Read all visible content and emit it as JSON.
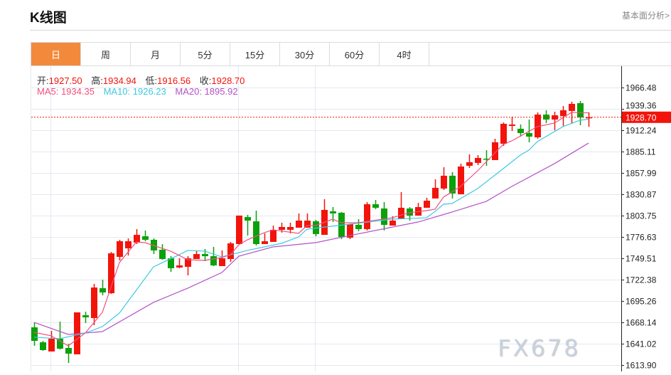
{
  "header": {
    "title": "K线图",
    "more_link": "基本面分析>"
  },
  "tabs": [
    {
      "label": "日",
      "active": true
    },
    {
      "label": "周"
    },
    {
      "label": "月"
    },
    {
      "label": "5分"
    },
    {
      "label": "15分"
    },
    {
      "label": "30分"
    },
    {
      "label": "60分"
    },
    {
      "label": "4时"
    }
  ],
  "info": {
    "open_label": "开:",
    "open": "1927.50",
    "high_label": "高:",
    "high": "1934.94",
    "low_label": "低:",
    "low": "1916.56",
    "close_label": "收:",
    "close": "1928.70",
    "ma5": "MA5: 1934.35",
    "ma10": "MA10: 1926.23",
    "ma20": "MA20: 1895.92"
  },
  "watermark": "FX678",
  "colors": {
    "up": "#f2140b",
    "down": "#0aa10a",
    "ma5": "#f0507e",
    "ma10": "#3ec8e0",
    "ma20": "#b452c6",
    "tab_active": "#f28a3c"
  },
  "chart_data": {
    "type": "candlestick",
    "ylim": [
      1613.9,
      1966.48
    ],
    "y_ticks": [
      "1966.48",
      "1939.36",
      "1912.24",
      "1885.11",
      "1857.99",
      "1830.87",
      "1803.75",
      "1776.63",
      "1749.51",
      "1722.38",
      "1695.26",
      "1668.14",
      "1641.02",
      "1613.90"
    ],
    "last_price": "1928.70",
    "candles_ohlc": [
      [
        1661.8,
        1668.1,
        1638.3,
        1644.6
      ],
      [
        1642.8,
        1644.6,
        1632.0,
        1632.9
      ],
      [
        1631.1,
        1657.3,
        1631.1,
        1647.3
      ],
      [
        1647.3,
        1669.0,
        1633.8,
        1634.7
      ],
      [
        1635.6,
        1641.0,
        1616.6,
        1628.4
      ],
      [
        1627.5,
        1680.8,
        1627.5,
        1680.8
      ],
      [
        1677.2,
        1681.7,
        1667.2,
        1674.5
      ],
      [
        1673.6,
        1717.0,
        1664.5,
        1712.4
      ],
      [
        1711.5,
        1722.4,
        1702.5,
        1706.1
      ],
      [
        1705.2,
        1757.6,
        1704.3,
        1755.8
      ],
      [
        1751.3,
        1773.0,
        1746.8,
        1771.2
      ],
      [
        1762.2,
        1774.8,
        1753.1,
        1771.2
      ],
      [
        1769.4,
        1786.6,
        1767.6,
        1779.3
      ],
      [
        1777.5,
        1784.8,
        1771.2,
        1773.0
      ],
      [
        1773.0,
        1774.8,
        1754.9,
        1759.5
      ],
      [
        1760.4,
        1767.6,
        1747.7,
        1748.6
      ],
      [
        1749.5,
        1752.2,
        1732.3,
        1736.9
      ],
      [
        1737.8,
        1749.5,
        1736.9,
        1740.5
      ],
      [
        1738.7,
        1752.2,
        1727.8,
        1749.5
      ],
      [
        1748.6,
        1758.6,
        1748.6,
        1754.9
      ],
      [
        1754.9,
        1761.3,
        1745.9,
        1752.2
      ],
      [
        1752.2,
        1764.0,
        1739.6,
        1740.5
      ],
      [
        1739.6,
        1759.5,
        1739.6,
        1749.5
      ],
      [
        1748.6,
        1770.3,
        1745.0,
        1768.5
      ],
      [
        1767.6,
        1803.8,
        1767.6,
        1803.8
      ],
      [
        1801.9,
        1804.7,
        1778.4,
        1797.4
      ],
      [
        1796.5,
        1810.1,
        1765.8,
        1767.6
      ],
      [
        1767.6,
        1781.2,
        1767.6,
        1771.2
      ],
      [
        1770.3,
        1791.1,
        1770.3,
        1785.7
      ],
      [
        1785.7,
        1794.7,
        1782.1,
        1789.3
      ],
      [
        1785.7,
        1794.7,
        1781.2,
        1789.3
      ],
      [
        1788.4,
        1806.5,
        1788.4,
        1797.4
      ],
      [
        1788.4,
        1806.5,
        1788.4,
        1797.4
      ],
      [
        1796.5,
        1798.3,
        1777.5,
        1780.3
      ],
      [
        1779.3,
        1824.6,
        1779.3,
        1811.0
      ],
      [
        1809.2,
        1814.6,
        1795.6,
        1806.5
      ],
      [
        1807.4,
        1808.3,
        1773.9,
        1776.6
      ],
      [
        1775.7,
        1792.9,
        1773.9,
        1792.9
      ],
      [
        1792.0,
        1799.2,
        1783.9,
        1786.6
      ],
      [
        1786.6,
        1820.9,
        1784.8,
        1818.2
      ],
      [
        1818.2,
        1823.6,
        1811.9,
        1813.7
      ],
      [
        1812.8,
        1820.9,
        1784.8,
        1792.0
      ],
      [
        1791.1,
        1802.9,
        1791.1,
        1797.4
      ],
      [
        1800.1,
        1833.6,
        1800.1,
        1813.7
      ],
      [
        1812.8,
        1814.6,
        1797.4,
        1803.8
      ],
      [
        1803.8,
        1820.0,
        1803.8,
        1814.6
      ],
      [
        1813.7,
        1826.4,
        1813.7,
        1822.7
      ],
      [
        1825.5,
        1849.9,
        1825.5,
        1839.0
      ],
      [
        1838.1,
        1865.2,
        1836.3,
        1854.4
      ],
      [
        1854.4,
        1858.9,
        1825.5,
        1831.8
      ],
      [
        1830.9,
        1869.8,
        1830.9,
        1866.1
      ],
      [
        1867.0,
        1881.5,
        1864.3,
        1871.6
      ],
      [
        1870.7,
        1880.6,
        1867.9,
        1877.0
      ],
      [
        1876.1,
        1886.9,
        1867.0,
        1875.2
      ],
      [
        1874.3,
        1901.4,
        1874.3,
        1896.9
      ],
      [
        1895.1,
        1922.2,
        1892.4,
        1920.4
      ],
      [
        1917.7,
        1929.4,
        1911.3,
        1919.5
      ],
      [
        1914.1,
        1919.5,
        1904.1,
        1908.6
      ],
      [
        1908.6,
        1925.8,
        1896.9,
        1904.1
      ],
      [
        1903.2,
        1934.9,
        1901.4,
        1932.1
      ],
      [
        1932.1,
        1937.6,
        1921.3,
        1925.8
      ],
      [
        1925.8,
        1935.8,
        1912.2,
        1931.2
      ],
      [
        1930.3,
        1943.0,
        1917.7,
        1937.6
      ],
      [
        1936.7,
        1948.4,
        1920.4,
        1945.7
      ],
      [
        1946.6,
        1949.3,
        1918.6,
        1928.5
      ],
      [
        1927.5,
        1934.94,
        1916.56,
        1928.7
      ]
    ],
    "ma5_points": [
      [
        0,
        1655.5
      ],
      [
        2,
        1651.0
      ],
      [
        4,
        1638.3
      ],
      [
        6,
        1654.6
      ],
      [
        8,
        1680.8
      ],
      [
        10,
        1744.1
      ],
      [
        12,
        1770.3
      ],
      [
        13,
        1769.4
      ],
      [
        16,
        1758.6
      ],
      [
        18,
        1747.7
      ],
      [
        20,
        1746.8
      ],
      [
        22,
        1750.4
      ],
      [
        23,
        1754.0
      ],
      [
        24,
        1766.7
      ],
      [
        25,
        1773.0
      ],
      [
        27,
        1782.1
      ],
      [
        28,
        1785.7
      ],
      [
        31,
        1781.2
      ],
      [
        32,
        1791.1
      ],
      [
        33,
        1791.1
      ],
      [
        35,
        1799.2
      ],
      [
        36,
        1794.7
      ],
      [
        38,
        1794.7
      ],
      [
        42,
        1801.1
      ],
      [
        44,
        1807.4
      ],
      [
        46,
        1810.1
      ],
      [
        47,
        1811.9
      ],
      [
        48,
        1827.3
      ],
      [
        50,
        1840.8
      ],
      [
        52,
        1860.7
      ],
      [
        54,
        1883.3
      ],
      [
        55,
        1894.2
      ],
      [
        56,
        1898.7
      ],
      [
        59,
        1916.8
      ],
      [
        61,
        1921.3
      ],
      [
        63,
        1934.9
      ],
      [
        65,
        1934.35
      ]
    ],
    "ma10_points": [
      [
        0,
        1649.2
      ],
      [
        3,
        1647.4
      ],
      [
        6,
        1654.6
      ],
      [
        8,
        1662.7
      ],
      [
        10,
        1679.9
      ],
      [
        14,
        1738.7
      ],
      [
        17,
        1754.0
      ],
      [
        18,
        1759.5
      ],
      [
        20,
        1758.6
      ],
      [
        22,
        1751.3
      ],
      [
        24,
        1756.7
      ],
      [
        25,
        1759.5
      ],
      [
        29,
        1768.5
      ],
      [
        31,
        1776.6
      ],
      [
        32,
        1786.6
      ],
      [
        37,
        1792.9
      ],
      [
        42,
        1799.2
      ],
      [
        44,
        1800.1
      ],
      [
        46,
        1801.0
      ],
      [
        47,
        1809.0
      ],
      [
        48,
        1818.2
      ],
      [
        49,
        1819.1
      ],
      [
        52,
        1838.1
      ],
      [
        55,
        1863.4
      ],
      [
        57,
        1880.6
      ],
      [
        58,
        1886.9
      ],
      [
        59,
        1897.8
      ],
      [
        62,
        1916.8
      ],
      [
        64,
        1924.9
      ],
      [
        65,
        1926.23
      ]
    ],
    "ma20_points": [
      [
        0,
        1668.1
      ],
      [
        4,
        1652.8
      ],
      [
        8,
        1656.4
      ],
      [
        14,
        1693.5
      ],
      [
        18,
        1711.5
      ],
      [
        22,
        1731.4
      ],
      [
        24,
        1752.2
      ],
      [
        28,
        1764.0
      ],
      [
        33,
        1769.4
      ],
      [
        37,
        1778.4
      ],
      [
        45,
        1795.6
      ],
      [
        49,
        1808.3
      ],
      [
        53,
        1821.8
      ],
      [
        56,
        1840.8
      ],
      [
        61,
        1869.8
      ],
      [
        65,
        1895.92
      ]
    ],
    "grid": true
  }
}
